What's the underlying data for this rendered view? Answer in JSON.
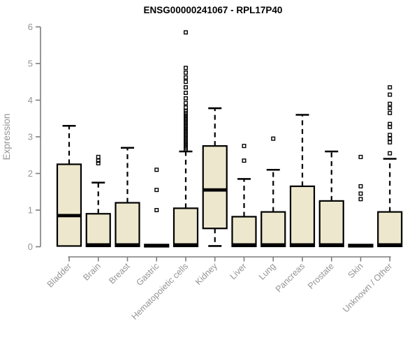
{
  "title": "ENSG00000241067 - RPL17P40",
  "chart_data": {
    "type": "boxplot",
    "title": "ENSG00000241067 - RPL17P40",
    "xlabel": "",
    "ylabel": "Expression",
    "ylim": [
      0,
      6
    ],
    "yticks": [
      0,
      1,
      2,
      3,
      4,
      5,
      6
    ],
    "grid": false,
    "legend": "none",
    "colors": {
      "box_fill": "#EDE8CD",
      "box_stroke": "#000000",
      "median": "#000000",
      "whisker": "#000000",
      "axis": "#7d7d7d",
      "tick_text": "#949494",
      "title_text": "#000000",
      "background": "#ffffff"
    },
    "categories": [
      "Bladder",
      "Brain",
      "Breast",
      "Gastric",
      "Hematopoietic cells",
      "Kidney",
      "Liver",
      "Lung",
      "Pancreas",
      "Prostate",
      "Skin",
      "Unknown / Other"
    ],
    "boxes": [
      {
        "label": "Bladder",
        "low": 0.02,
        "q1": 0.02,
        "median": 0.85,
        "q3": 2.25,
        "high": 3.3,
        "outliers": []
      },
      {
        "label": "Brain",
        "low": 0.01,
        "q1": 0.01,
        "median": 0.05,
        "q3": 0.9,
        "high": 1.75,
        "outliers": [
          2.28,
          2.35,
          2.45
        ]
      },
      {
        "label": "Breast",
        "low": 0.01,
        "q1": 0.01,
        "median": 0.05,
        "q3": 1.2,
        "high": 2.7,
        "outliers": []
      },
      {
        "label": "Gastric",
        "low": 0.0,
        "q1": 0.0,
        "median": 0.03,
        "q3": 0.06,
        "high": 0.06,
        "outliers": [
          1.0,
          1.55,
          2.1
        ]
      },
      {
        "label": "Hematopoietic cells",
        "low": 0.01,
        "q1": 0.01,
        "median": 0.05,
        "q3": 1.05,
        "high": 2.6,
        "outliers": [
          2.65,
          2.69,
          2.73,
          2.77,
          2.81,
          2.85,
          2.89,
          2.93,
          2.97,
          3.01,
          3.05,
          3.09,
          3.13,
          3.17,
          3.21,
          3.25,
          3.29,
          3.33,
          3.37,
          3.41,
          3.45,
          3.49,
          3.53,
          3.57,
          3.61,
          3.65,
          3.7,
          3.8,
          3.92,
          4.05,
          4.2,
          4.35,
          4.5,
          4.62,
          4.75,
          4.88,
          5.85
        ]
      },
      {
        "label": "Kidney",
        "low": 0.02,
        "q1": 0.5,
        "median": 1.55,
        "q3": 2.75,
        "high": 3.78,
        "outliers": []
      },
      {
        "label": "Liver",
        "low": 0.01,
        "q1": 0.01,
        "median": 0.05,
        "q3": 0.82,
        "high": 1.85,
        "outliers": [
          2.35,
          2.75
        ]
      },
      {
        "label": "Lung",
        "low": 0.01,
        "q1": 0.01,
        "median": 0.05,
        "q3": 0.95,
        "high": 2.1,
        "outliers": [
          2.95
        ]
      },
      {
        "label": "Pancreas",
        "low": 0.01,
        "q1": 0.01,
        "median": 0.05,
        "q3": 1.65,
        "high": 3.6,
        "outliers": []
      },
      {
        "label": "Prostate",
        "low": 0.01,
        "q1": 0.01,
        "median": 0.05,
        "q3": 1.25,
        "high": 2.6,
        "outliers": []
      },
      {
        "label": "Skin",
        "low": 0.0,
        "q1": 0.0,
        "median": 0.03,
        "q3": 0.06,
        "high": 0.06,
        "outliers": [
          1.3,
          1.45,
          1.65,
          2.45
        ]
      },
      {
        "label": "Unknown / Other",
        "low": 0.01,
        "q1": 0.01,
        "median": 0.05,
        "q3": 0.95,
        "high": 2.4,
        "outliers": [
          2.55,
          2.85,
          2.95,
          3.05,
          3.27,
          3.35,
          3.65,
          3.78,
          3.9,
          4.15,
          4.35
        ]
      }
    ]
  }
}
